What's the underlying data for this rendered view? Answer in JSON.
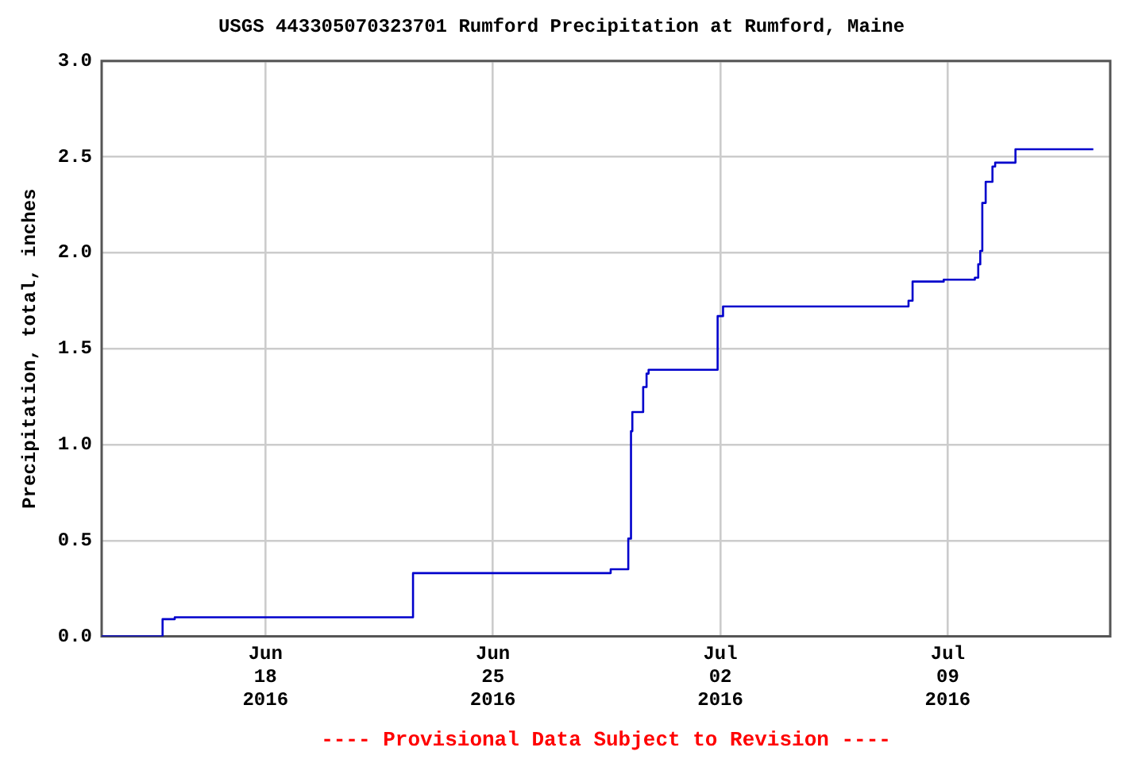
{
  "chart_data": {
    "type": "step",
    "title": "USGS 443305070323701 Rumford Precipitation at Rumford, Maine",
    "ylabel": "Precipitation, total, inches",
    "annotations": [
      "---- Provisional Data Subject to Revision ----"
    ],
    "x": [
      "2016-06-12T23:00",
      "2016-06-14T20:00",
      "2016-06-15T05:00",
      "2016-06-22T13:00",
      "2016-06-28T15:00",
      "2016-06-29T04:00",
      "2016-06-29T06:00",
      "2016-06-29T07:00",
      "2016-06-29T15:00",
      "2016-06-29T17:30",
      "2016-06-29T19:00",
      "2016-07-01T22:00",
      "2016-07-02T02:00",
      "2016-07-07T19:00",
      "2016-07-07T22:00",
      "2016-07-08T21:00",
      "2016-07-09T20:00",
      "2016-07-09T22:30",
      "2016-07-10T00:00",
      "2016-07-10T01:30",
      "2016-07-10T04:00",
      "2016-07-10T09:00",
      "2016-07-10T11:00",
      "2016-07-11T02:00",
      "2016-07-13T11:30"
    ],
    "series": [
      {
        "color": "#0000cc",
        "values": [
          0.0,
          0.09,
          0.1,
          0.33,
          0.35,
          0.51,
          1.07,
          1.17,
          1.3,
          1.37,
          1.39,
          1.67,
          1.72,
          1.75,
          1.85,
          1.86,
          1.87,
          1.94,
          2.01,
          2.26,
          2.37,
          2.45,
          2.47,
          2.54,
          2.54
        ]
      }
    ],
    "xlim": [
      "2016-06-12T23:00",
      "2016-07-14T00:00"
    ],
    "xticks": [
      {
        "value": "2016-06-18",
        "label": "Jun 18 2016"
      },
      {
        "value": "2016-06-25",
        "label": "Jun 25 2016"
      },
      {
        "value": "2016-07-02",
        "label": "Jul 02 2016"
      },
      {
        "value": "2016-07-09",
        "label": "Jul 09 2016"
      }
    ],
    "ylim": [
      0,
      3
    ],
    "yticks": [
      {
        "value": 0,
        "label": "0.0"
      },
      {
        "value": 0.5,
        "label": "0.5"
      },
      {
        "value": 1,
        "label": "1.0"
      },
      {
        "value": 1.5,
        "label": "1.5"
      },
      {
        "value": 2,
        "label": "2.0"
      },
      {
        "value": 2.5,
        "label": "2.5"
      },
      {
        "value": 3,
        "label": "3.0"
      }
    ],
    "grid": true,
    "legend": false,
    "marker": "none",
    "line_style": "solid"
  }
}
